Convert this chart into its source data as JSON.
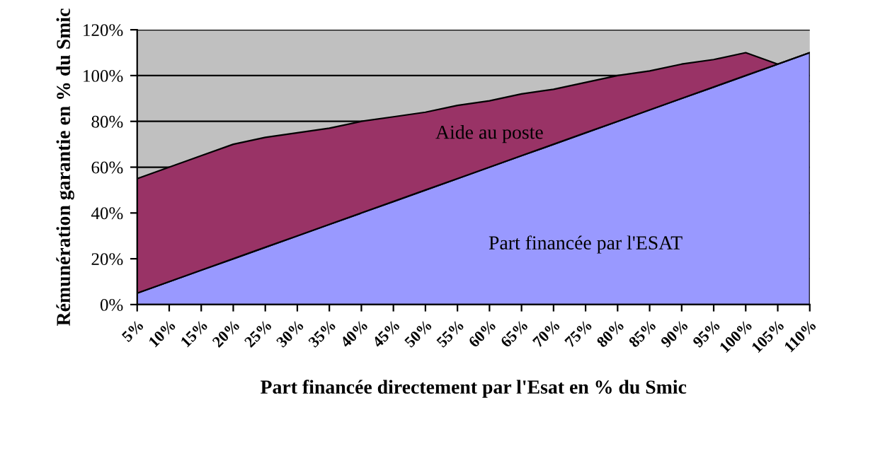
{
  "chart_data": {
    "type": "area",
    "stacked": true,
    "xlabel": "Part financée directement par l'Esat en % du Smic",
    "ylabel": "Rémunération garantie en % du Smic",
    "categories": [
      "5%",
      "10%",
      "15%",
      "20%",
      "25%",
      "30%",
      "35%",
      "40%",
      "45%",
      "50%",
      "55%",
      "60%",
      "65%",
      "70%",
      "75%",
      "80%",
      "85%",
      "90%",
      "95%",
      "100%",
      "105%",
      "110%"
    ],
    "series": [
      {
        "name": "Part financée par l'ESAT",
        "color": "#9999ff",
        "values": [
          5,
          10,
          15,
          20,
          25,
          30,
          35,
          40,
          45,
          50,
          55,
          60,
          65,
          70,
          75,
          80,
          85,
          90,
          95,
          100,
          105,
          110
        ]
      },
      {
        "name": "Aide au poste",
        "color": "#993366",
        "values": [
          50,
          50,
          50,
          50,
          48,
          45,
          42,
          40,
          37,
          34,
          32,
          29,
          27,
          24,
          22,
          20,
          17,
          15,
          12,
          10,
          0,
          0
        ]
      }
    ],
    "ylim": [
      0,
      120
    ],
    "yticks": [
      {
        "value": 0,
        "label": "0%"
      },
      {
        "value": 20,
        "label": "20%"
      },
      {
        "value": 40,
        "label": "40%"
      },
      {
        "value": 60,
        "label": "60%"
      },
      {
        "value": 80,
        "label": "80%"
      },
      {
        "value": 100,
        "label": "100%"
      },
      {
        "value": 120,
        "label": "120%"
      }
    ],
    "grid": "y",
    "legend": false
  }
}
